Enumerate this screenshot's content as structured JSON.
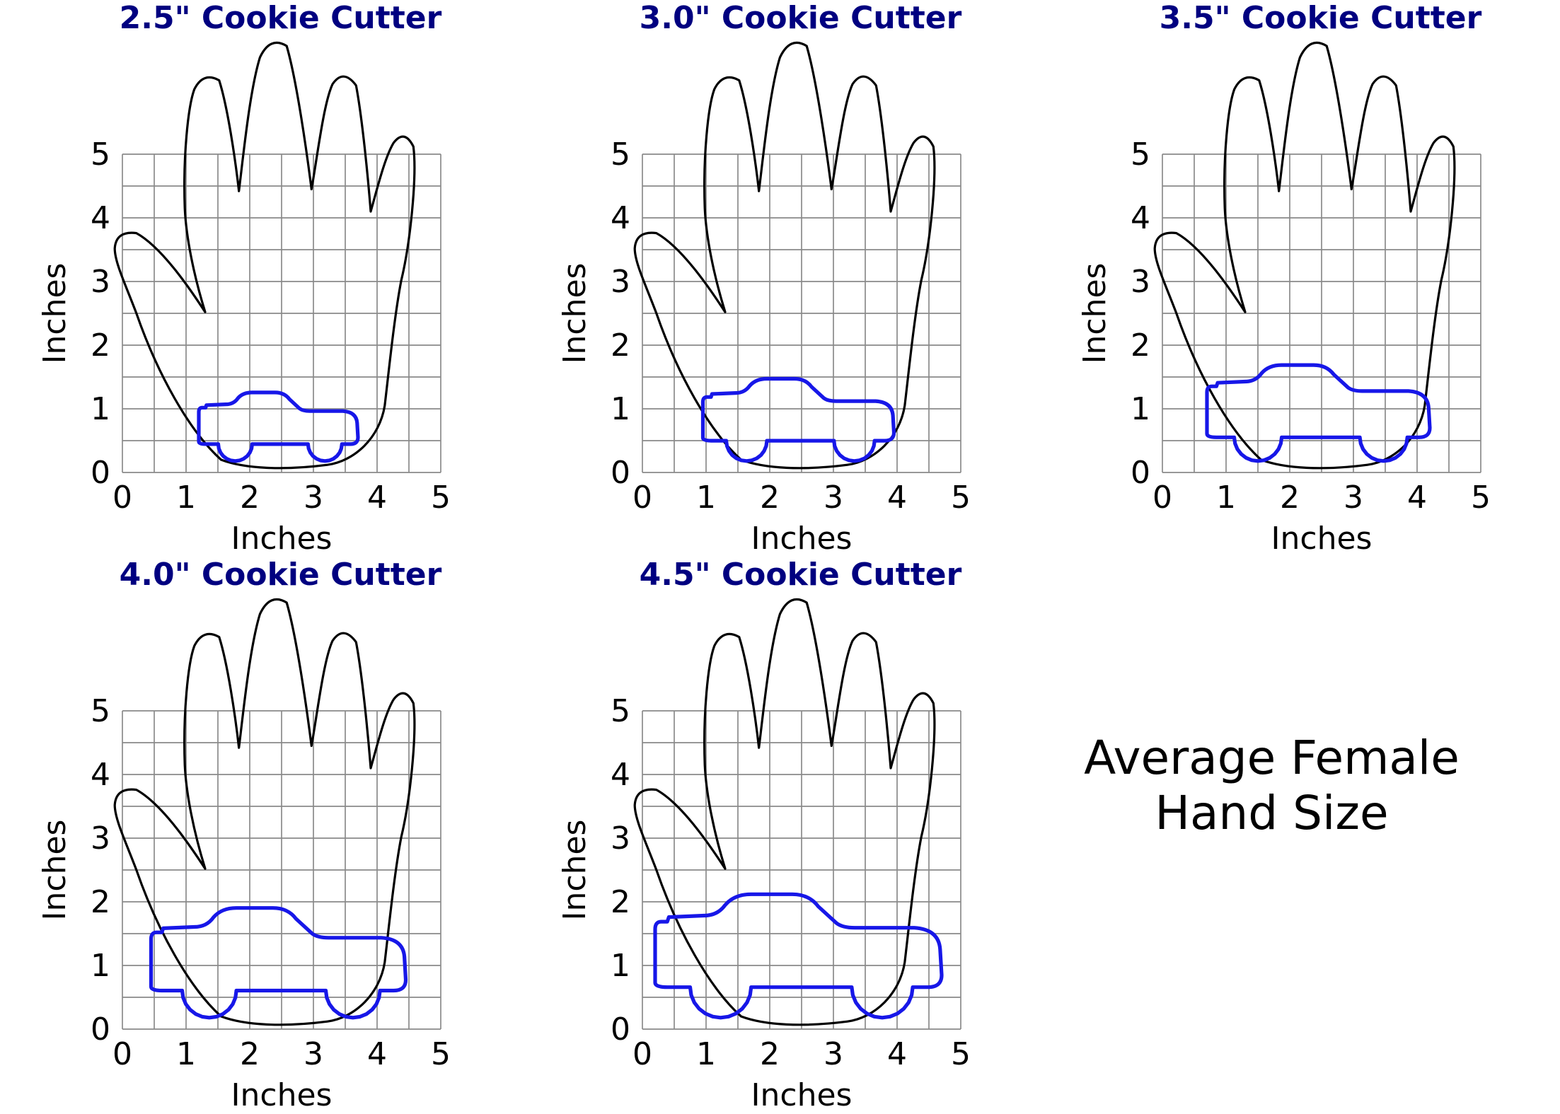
{
  "caption": {
    "line1": "Average Female",
    "line2": "Hand Size"
  },
  "colors": {
    "title": "#000080",
    "cutter_outline": "#1717e8",
    "hand_outline": "#000000",
    "grid": "#8a8a8a",
    "text": "#000000"
  },
  "chart_data": {
    "type": "line",
    "description": "Five subplots comparing truck-shaped cookie cutter sizes to an average female hand outline drawn on inch grids",
    "annotation": "Average Female Hand Size",
    "subplots": [
      {
        "title": "2.5\" Cookie Cutter",
        "cutter_width_in": 2.5,
        "xlabel": "Inches",
        "ylabel": "Inches",
        "xlim": [
          0,
          5
        ],
        "ylim": [
          0,
          5
        ],
        "xticks": [
          0,
          1,
          2,
          3,
          4,
          5
        ],
        "yticks": [
          0,
          1,
          2,
          3,
          4,
          5
        ],
        "grid": true,
        "grid_spacing_in": 0.5,
        "overlays": [
          "average-female-hand-outline",
          "truck-cookie-cutter-outline"
        ]
      },
      {
        "title": "3.0\" Cookie Cutter",
        "cutter_width_in": 3.0,
        "xlabel": "Inches",
        "ylabel": "Inches",
        "xlim": [
          0,
          5
        ],
        "ylim": [
          0,
          5
        ],
        "xticks": [
          0,
          1,
          2,
          3,
          4,
          5
        ],
        "yticks": [
          0,
          1,
          2,
          3,
          4,
          5
        ],
        "grid": true,
        "grid_spacing_in": 0.5,
        "overlays": [
          "average-female-hand-outline",
          "truck-cookie-cutter-outline"
        ]
      },
      {
        "title": "3.5\" Cookie Cutter",
        "cutter_width_in": 3.5,
        "xlabel": "Inches",
        "ylabel": "Inches",
        "xlim": [
          0,
          5
        ],
        "ylim": [
          0,
          5
        ],
        "xticks": [
          0,
          1,
          2,
          3,
          4,
          5
        ],
        "yticks": [
          0,
          1,
          2,
          3,
          4,
          5
        ],
        "grid": true,
        "grid_spacing_in": 0.5,
        "overlays": [
          "average-female-hand-outline",
          "truck-cookie-cutter-outline"
        ]
      },
      {
        "title": "4.0\" Cookie Cutter",
        "cutter_width_in": 4.0,
        "xlabel": "Inches",
        "ylabel": "Inches",
        "xlim": [
          0,
          5
        ],
        "ylim": [
          0,
          5
        ],
        "xticks": [
          0,
          1,
          2,
          3,
          4,
          5
        ],
        "yticks": [
          0,
          1,
          2,
          3,
          4,
          5
        ],
        "grid": true,
        "grid_spacing_in": 0.5,
        "overlays": [
          "average-female-hand-outline",
          "truck-cookie-cutter-outline"
        ]
      },
      {
        "title": "4.5\" Cookie Cutter",
        "cutter_width_in": 4.5,
        "xlabel": "Inches",
        "ylabel": "Inches",
        "xlim": [
          0,
          5
        ],
        "ylim": [
          0,
          5
        ],
        "xticks": [
          0,
          1,
          2,
          3,
          4,
          5
        ],
        "yticks": [
          0,
          1,
          2,
          3,
          4,
          5
        ],
        "grid": true,
        "grid_spacing_in": 0.5,
        "overlays": [
          "average-female-hand-outline",
          "truck-cookie-cutter-outline"
        ]
      }
    ]
  }
}
